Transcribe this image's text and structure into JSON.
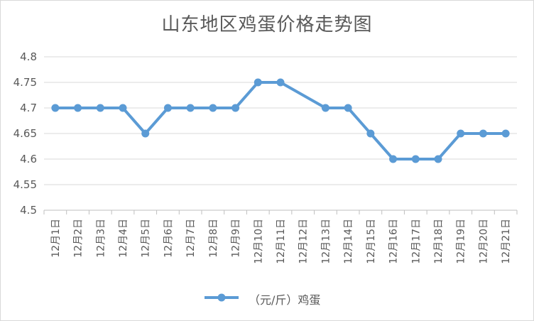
{
  "chart_data": {
    "type": "line",
    "title": "山东地区鸡蛋价格走势图",
    "categories": [
      "12月1日",
      "12月2日",
      "12月3日",
      "12月4日",
      "12月5日",
      "12月6日",
      "12月7日",
      "12月8日",
      "12月9日",
      "12月10日",
      "12月11日",
      "12月12日",
      "12月13日",
      "12月14日",
      "12月15日",
      "12月16日",
      "12月17日",
      "12月18日",
      "12月19日",
      "12月20日",
      "12月21日"
    ],
    "series": [
      {
        "name": "（元/斤）鸡蛋",
        "values": [
          4.7,
          4.7,
          4.7,
          4.7,
          4.65,
          4.7,
          4.7,
          4.7,
          4.7,
          4.75,
          4.75,
          null,
          4.7,
          4.7,
          4.65,
          4.6,
          4.6,
          4.6,
          4.65,
          4.65,
          4.65
        ],
        "color": "#5b9bd5"
      }
    ],
    "ylim": [
      4.5,
      4.8
    ],
    "yticks": [
      "4.5",
      "4.55",
      "4.6",
      "4.65",
      "4.7",
      "4.75",
      "4.8"
    ],
    "grid": true,
    "legend": "bottom",
    "gridColor": "#d9d9d9",
    "axisColor": "#bfbfbf"
  }
}
